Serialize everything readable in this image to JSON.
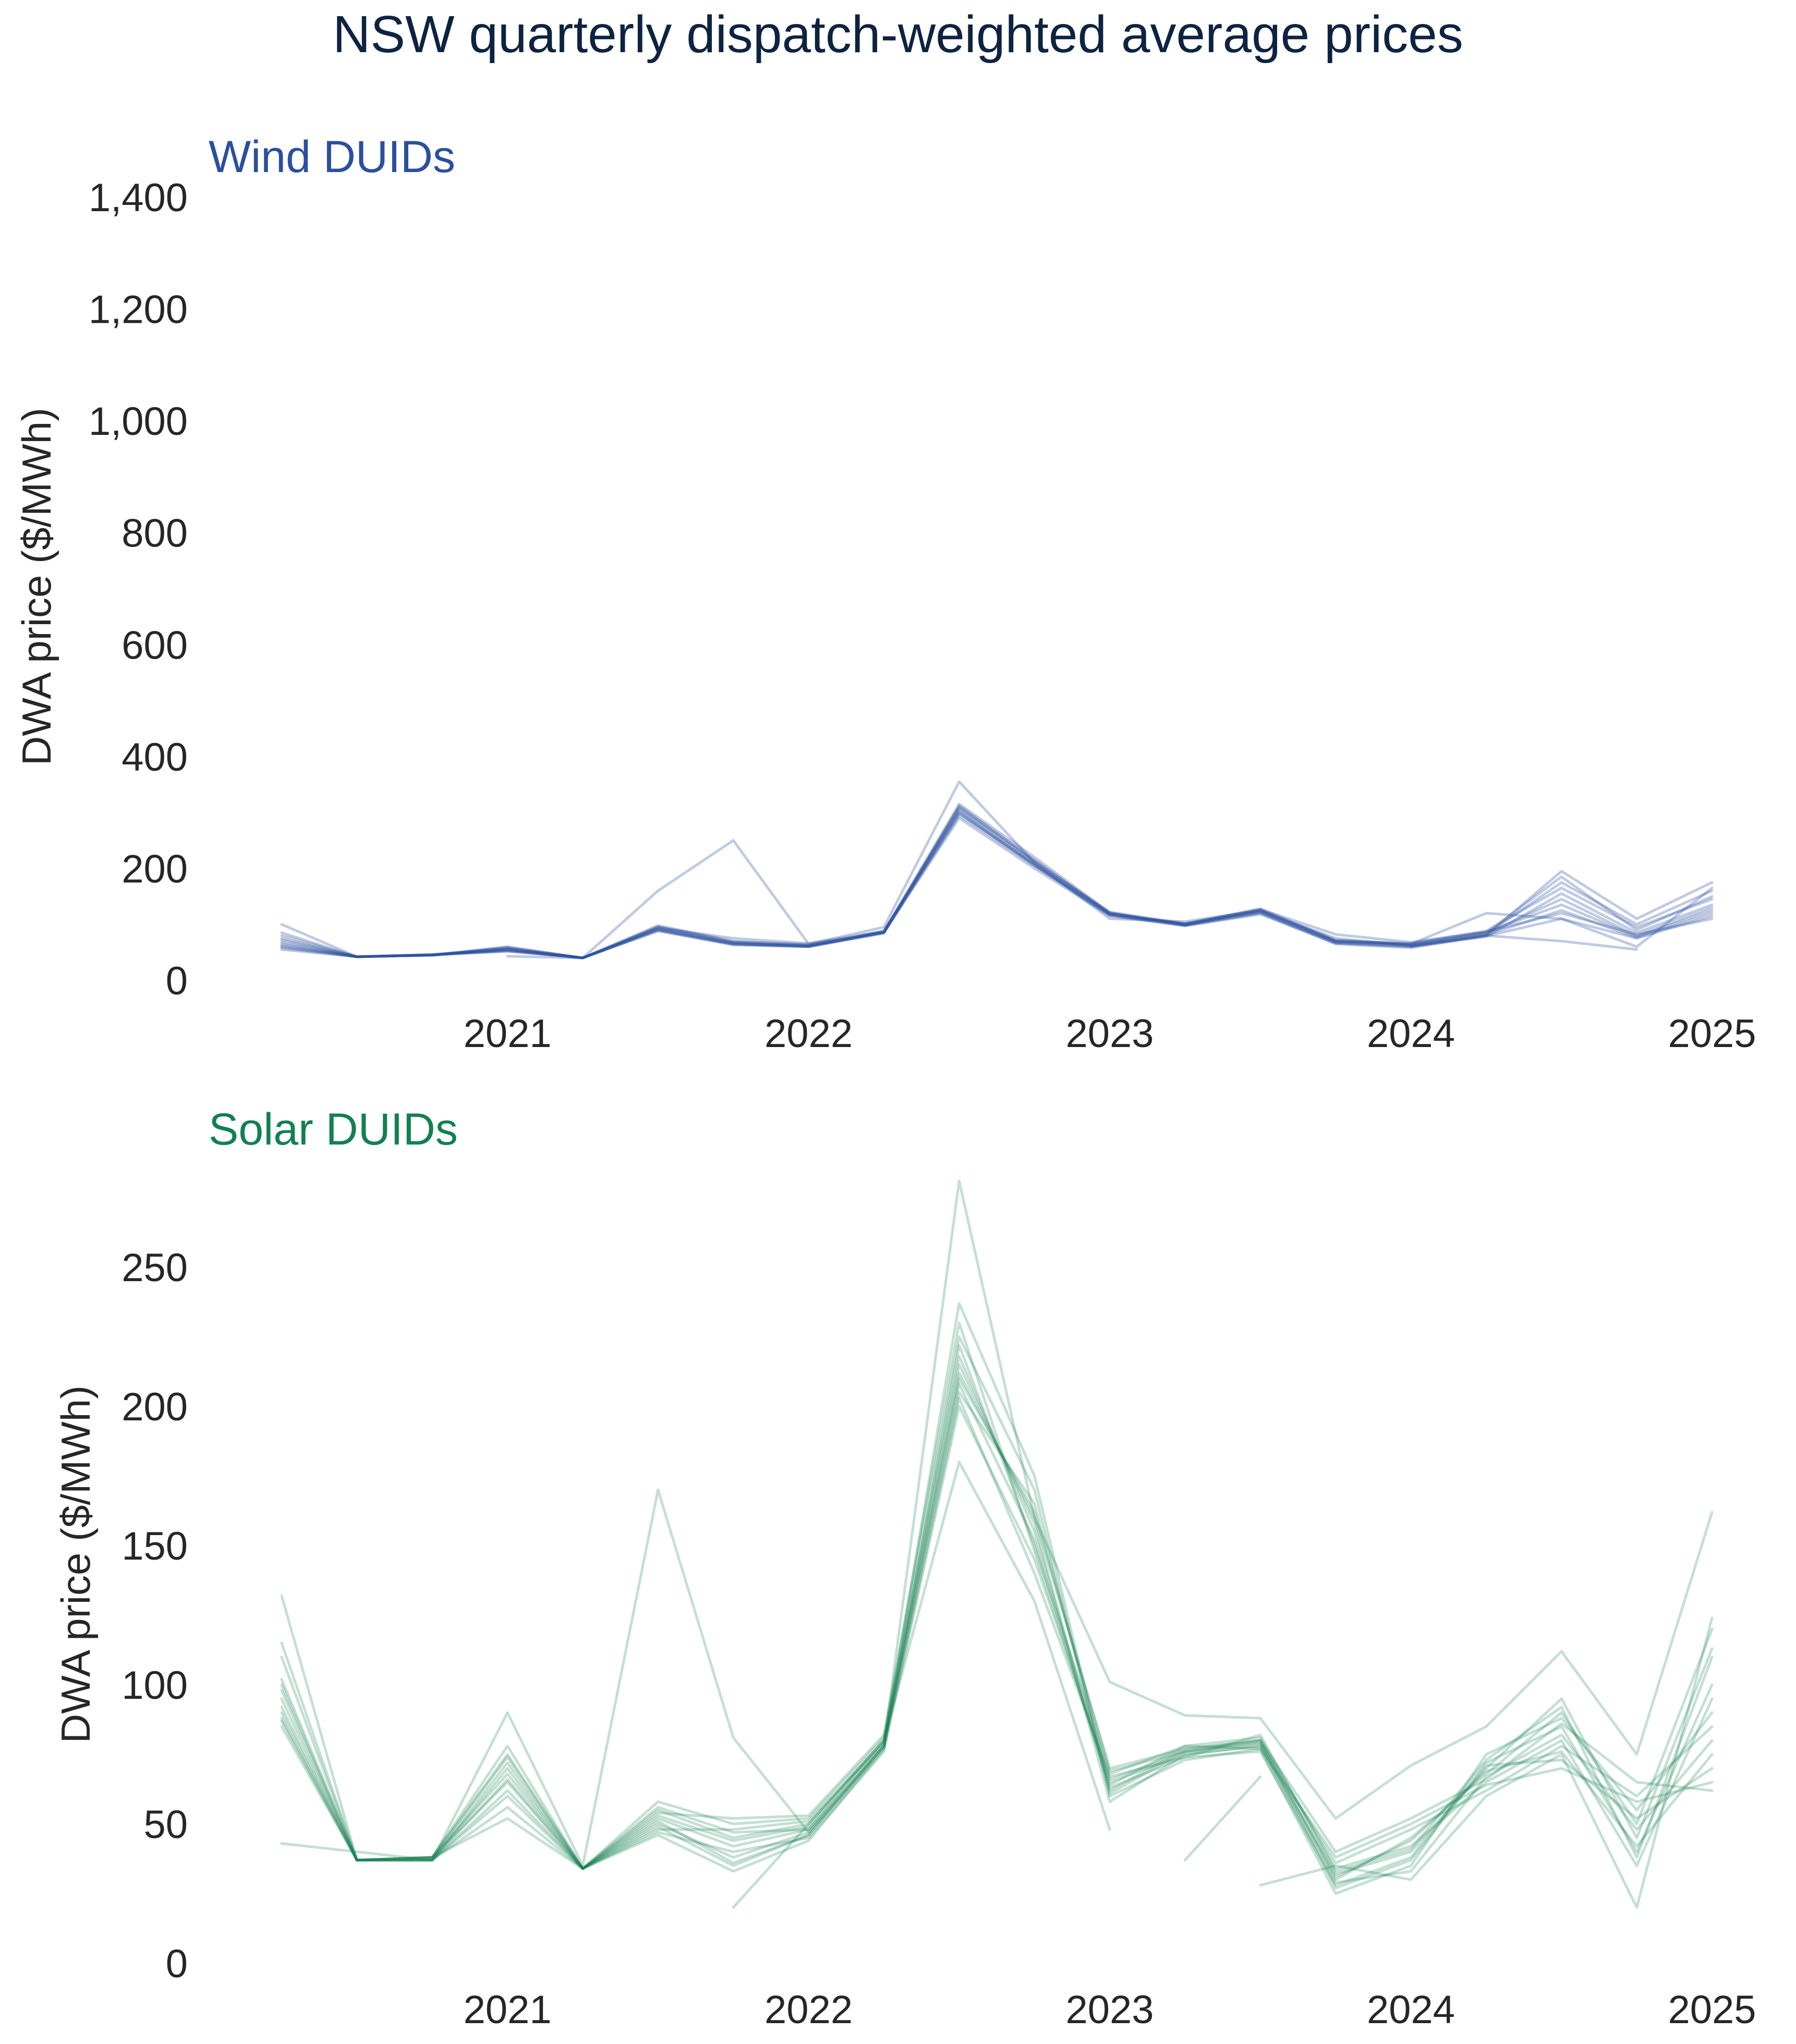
{
  "title": "NSW quarterly dispatch-weighted average prices",
  "chart_data": [
    {
      "type": "line",
      "panel_title": "Wind DUIDs",
      "color": "#2b4f9e",
      "ylabel": "DWA price ($/MWh)",
      "xlabel": "",
      "x_ticks": [
        "2021",
        "2022",
        "2023",
        "2024",
        "2025"
      ],
      "x_tick_values": [
        "2021-Q1",
        "2022-Q1",
        "2023-Q1",
        "2024-Q1",
        "2025-Q1"
      ],
      "y_ticks": [
        "0",
        "200",
        "400",
        "600",
        "800",
        "1,000",
        "1,200",
        "1,400"
      ],
      "y_tick_values": [
        0,
        200,
        400,
        600,
        800,
        1000,
        1200,
        1400
      ],
      "ylim": [
        0,
        1400
      ],
      "x": [
        "2020-Q2",
        "2020-Q3",
        "2020-Q4",
        "2021-Q1",
        "2021-Q2",
        "2021-Q3",
        "2021-Q4",
        "2022-Q1",
        "2022-Q2",
        "2022-Q3",
        "2022-Q4",
        "2023-Q1",
        "2023-Q2",
        "2023-Q3",
        "2023-Q4",
        "2024-Q1",
        "2024-Q2",
        "2024-Q3",
        "2024-Q4",
        "2025-Q1"
      ],
      "series": [
        {
          "values": [
            100,
            42,
            45,
            52,
            40,
            160,
            250,
            65,
            95,
            355,
            210,
            110,
            105,
            125,
            70,
            65,
            120,
            110,
            60,
            165
          ]
        },
        {
          "values": [
            null,
            null,
            null,
            43,
            40,
            null,
            null,
            null,
            null,
            null,
            null,
            null,
            null,
            null,
            null,
            null,
            null,
            null,
            null,
            null
          ]
        },
        {
          "values": [
            null,
            null,
            null,
            null,
            null,
            null,
            null,
            null,
            null,
            null,
            null,
            null,
            null,
            null,
            null,
            60,
            80,
            70,
            55,
            null
          ]
        },
        {
          "values": [
            55,
            42,
            45,
            55,
            40,
            90,
            65,
            60,
            85,
            290,
            200,
            115,
            98,
            120,
            65,
            58,
            80,
            195,
            110,
            175
          ]
        },
        {
          "values": [
            58,
            42,
            45,
            58,
            40,
            95,
            68,
            62,
            86,
            300,
            205,
            118,
            100,
            122,
            68,
            62,
            82,
            175,
            100,
            160
          ]
        },
        {
          "values": [
            60,
            42,
            45,
            60,
            40,
            92,
            66,
            61,
            88,
            310,
            215,
            120,
            99,
            125,
            70,
            64,
            85,
            185,
            90,
            150
          ]
        },
        {
          "values": [
            62,
            42,
            46,
            56,
            40,
            98,
            70,
            63,
            86,
            305,
            210,
            122,
            101,
            128,
            72,
            66,
            88,
            165,
            95,
            145
          ]
        },
        {
          "values": [
            65,
            42,
            46,
            54,
            40,
            88,
            64,
            60,
            85,
            295,
            205,
            116,
            97,
            118,
            66,
            60,
            78,
            155,
            85,
            135
          ]
        },
        {
          "values": [
            68,
            42,
            45,
            57,
            40,
            93,
            67,
            62,
            87,
            315,
            220,
            121,
            100,
            126,
            71,
            63,
            84,
            145,
            80,
            130
          ]
        },
        {
          "values": [
            72,
            42,
            45,
            59,
            40,
            96,
            69,
            64,
            86,
            308,
            212,
            119,
            102,
            123,
            69,
            65,
            86,
            135,
            78,
            125
          ]
        },
        {
          "values": [
            75,
            42,
            45,
            55,
            40,
            91,
            65,
            61,
            85,
            298,
            208,
            117,
            98,
            121,
            67,
            61,
            81,
            125,
            76,
            120
          ]
        },
        {
          "values": [
            80,
            42,
            45,
            53,
            40,
            89,
            63,
            60,
            84,
            312,
            214,
            120,
            99,
            124,
            75,
            62,
            79,
            110,
            75,
            115
          ]
        },
        {
          "values": [
            85,
            42,
            46,
            52,
            40,
            94,
            75,
            66,
            88,
            302,
            206,
            118,
            101,
            127,
            82,
            68,
            87,
            120,
            82,
            110
          ]
        }
      ]
    },
    {
      "type": "line",
      "panel_title": "Solar DUIDs",
      "color": "#128050",
      "ylabel": "DWA price ($/MWh)",
      "xlabel": "",
      "x_ticks": [
        "2021",
        "2022",
        "2023",
        "2024",
        "2025"
      ],
      "x_tick_values": [
        "2021-Q1",
        "2022-Q1",
        "2023-Q1",
        "2024-Q1",
        "2025-Q1"
      ],
      "y_ticks": [
        "0",
        "50",
        "100",
        "150",
        "200",
        "250"
      ],
      "y_tick_values": [
        0,
        50,
        100,
        150,
        200,
        250
      ],
      "ylim": [
        0,
        280
      ],
      "x": [
        "2020-Q2",
        "2020-Q3",
        "2020-Q4",
        "2021-Q1",
        "2021-Q2",
        "2021-Q3",
        "2021-Q4",
        "2022-Q1",
        "2022-Q2",
        "2022-Q3",
        "2022-Q4",
        "2023-Q1",
        "2023-Q2",
        "2023-Q3",
        "2023-Q4",
        "2024-Q1",
        "2024-Q2",
        "2024-Q3",
        "2024-Q4",
        "2025-Q1"
      ],
      "series": [
        {
          "values": [
            43,
            40,
            37,
            90,
            35,
            170,
            81,
            47,
            78,
            281,
            160,
            101,
            89,
            88,
            52,
            71,
            85,
            112,
            75,
            162
          ]
        },
        {
          "values": [
            null,
            null,
            null,
            null,
            null,
            null,
            20,
            50,
            80,
            180,
            130,
            48,
            null,
            null,
            null,
            null,
            null,
            null,
            null,
            null
          ]
        },
        {
          "values": [
            null,
            null,
            null,
            null,
            null,
            null,
            null,
            null,
            null,
            null,
            null,
            null,
            37,
            67,
            null,
            null,
            null,
            null,
            null,
            null
          ]
        },
        {
          "values": [
            null,
            null,
            null,
            null,
            null,
            null,
            null,
            null,
            null,
            null,
            null,
            null,
            null,
            28,
            35,
            30,
            60,
            75,
            20,
            124
          ]
        },
        {
          "values": [
            132,
            37,
            38,
            75,
            34,
            49,
            35,
            46,
            78,
            205,
            165,
            65,
            75,
            78,
            32,
            40,
            70,
            95,
            45,
            113
          ]
        },
        {
          "values": [
            115,
            37,
            37,
            70,
            34,
            52,
            42,
            48,
            79,
            212,
            160,
            70,
            77,
            80,
            30,
            45,
            68,
            90,
            50,
            120
          ]
        },
        {
          "values": [
            110,
            37,
            38,
            65,
            34,
            55,
            45,
            50,
            80,
            218,
            155,
            63,
            74,
            76,
            28,
            38,
            72,
            85,
            40,
            100
          ]
        },
        {
          "values": [
            102,
            37,
            37,
            60,
            34,
            50,
            38,
            47,
            77,
            222,
            150,
            68,
            78,
            81,
            34,
            42,
            65,
            80,
            35,
            95
          ]
        },
        {
          "values": [
            100,
            37,
            38,
            78,
            34,
            58,
            50,
            52,
            81,
            225,
            170,
            60,
            73,
            77,
            25,
            35,
            75,
            88,
            55,
            90
          ]
        },
        {
          "values": [
            95,
            37,
            37,
            72,
            34,
            47,
            40,
            45,
            76,
            200,
            145,
            66,
            76,
            79,
            36,
            48,
            62,
            78,
            60,
            85
          ]
        },
        {
          "values": [
            90,
            37,
            38,
            68,
            34,
            53,
            44,
            49,
            80,
            215,
            158,
            58,
            75,
            78,
            29,
            33,
            67,
            82,
            48,
            80
          ]
        },
        {
          "values": [
            88,
            37,
            37,
            56,
            34,
            48,
            48,
            51,
            79,
            208,
            152,
            62,
            77,
            80,
            31,
            44,
            69,
            76,
            42,
            75
          ]
        },
        {
          "values": [
            87,
            37,
            38,
            52,
            34,
            51,
            36,
            46,
            78,
            210,
            162,
            69,
            76,
            79,
            27,
            37,
            71,
            73,
            52,
            70
          ]
        },
        {
          "values": [
            85,
            37,
            37,
            62,
            34,
            54,
            52,
            53,
            82,
            230,
            148,
            64,
            78,
            77,
            38,
            50,
            64,
            70,
            58,
            65
          ]
        },
        {
          "values": [
            92,
            37,
            38,
            74,
            34,
            46,
            33,
            44,
            77,
            203,
            140,
            67,
            74,
            82,
            33,
            41,
            73,
            92,
            38,
            110
          ]
        },
        {
          "values": [
            98,
            37,
            37,
            66,
            34,
            56,
            47,
            48,
            78,
            237,
            175,
            61,
            76,
            80,
            40,
            52,
            66,
            86,
            65,
            62
          ]
        }
      ]
    }
  ]
}
